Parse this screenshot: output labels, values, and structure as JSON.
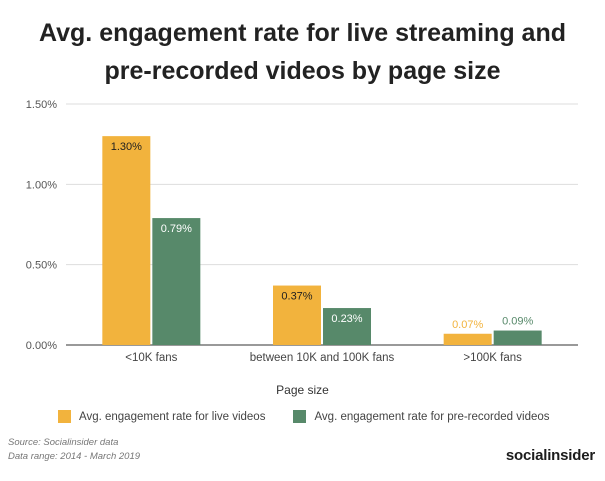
{
  "chart_data": {
    "type": "bar",
    "title_lines": [
      "Avg. engagement rate for live streaming and",
      "pre-recorded videos by page size"
    ],
    "xlabel": "Page size",
    "ylabel": "",
    "categories": [
      "<10K fans",
      "between 10K and 100K fans",
      ">100K fans"
    ],
    "series": [
      {
        "name": "Avg. engagement rate for live videos",
        "color": "#F2B33D",
        "values": [
          1.3,
          0.37,
          0.07
        ],
        "labels": [
          "1.30%",
          "0.37%",
          "0.07%"
        ]
      },
      {
        "name": "Avg. engagement rate for pre-recorded videos",
        "color": "#57896A",
        "values": [
          0.79,
          0.23,
          0.09
        ],
        "labels": [
          "0.79%",
          "0.23%",
          "0.09%"
        ]
      }
    ],
    "ylim": [
      0,
      1.5
    ],
    "yticks": [
      0,
      0.5,
      1.0,
      1.5
    ],
    "ytick_labels": [
      "0.00%",
      "0.50%",
      "1.00%",
      "1.50%"
    ],
    "grid": true,
    "legend_position": "bottom"
  },
  "source": {
    "line1": "Source: Socialinsider data",
    "line2": "Data range: 2014 - March 2019"
  },
  "brand": "socialinsider"
}
